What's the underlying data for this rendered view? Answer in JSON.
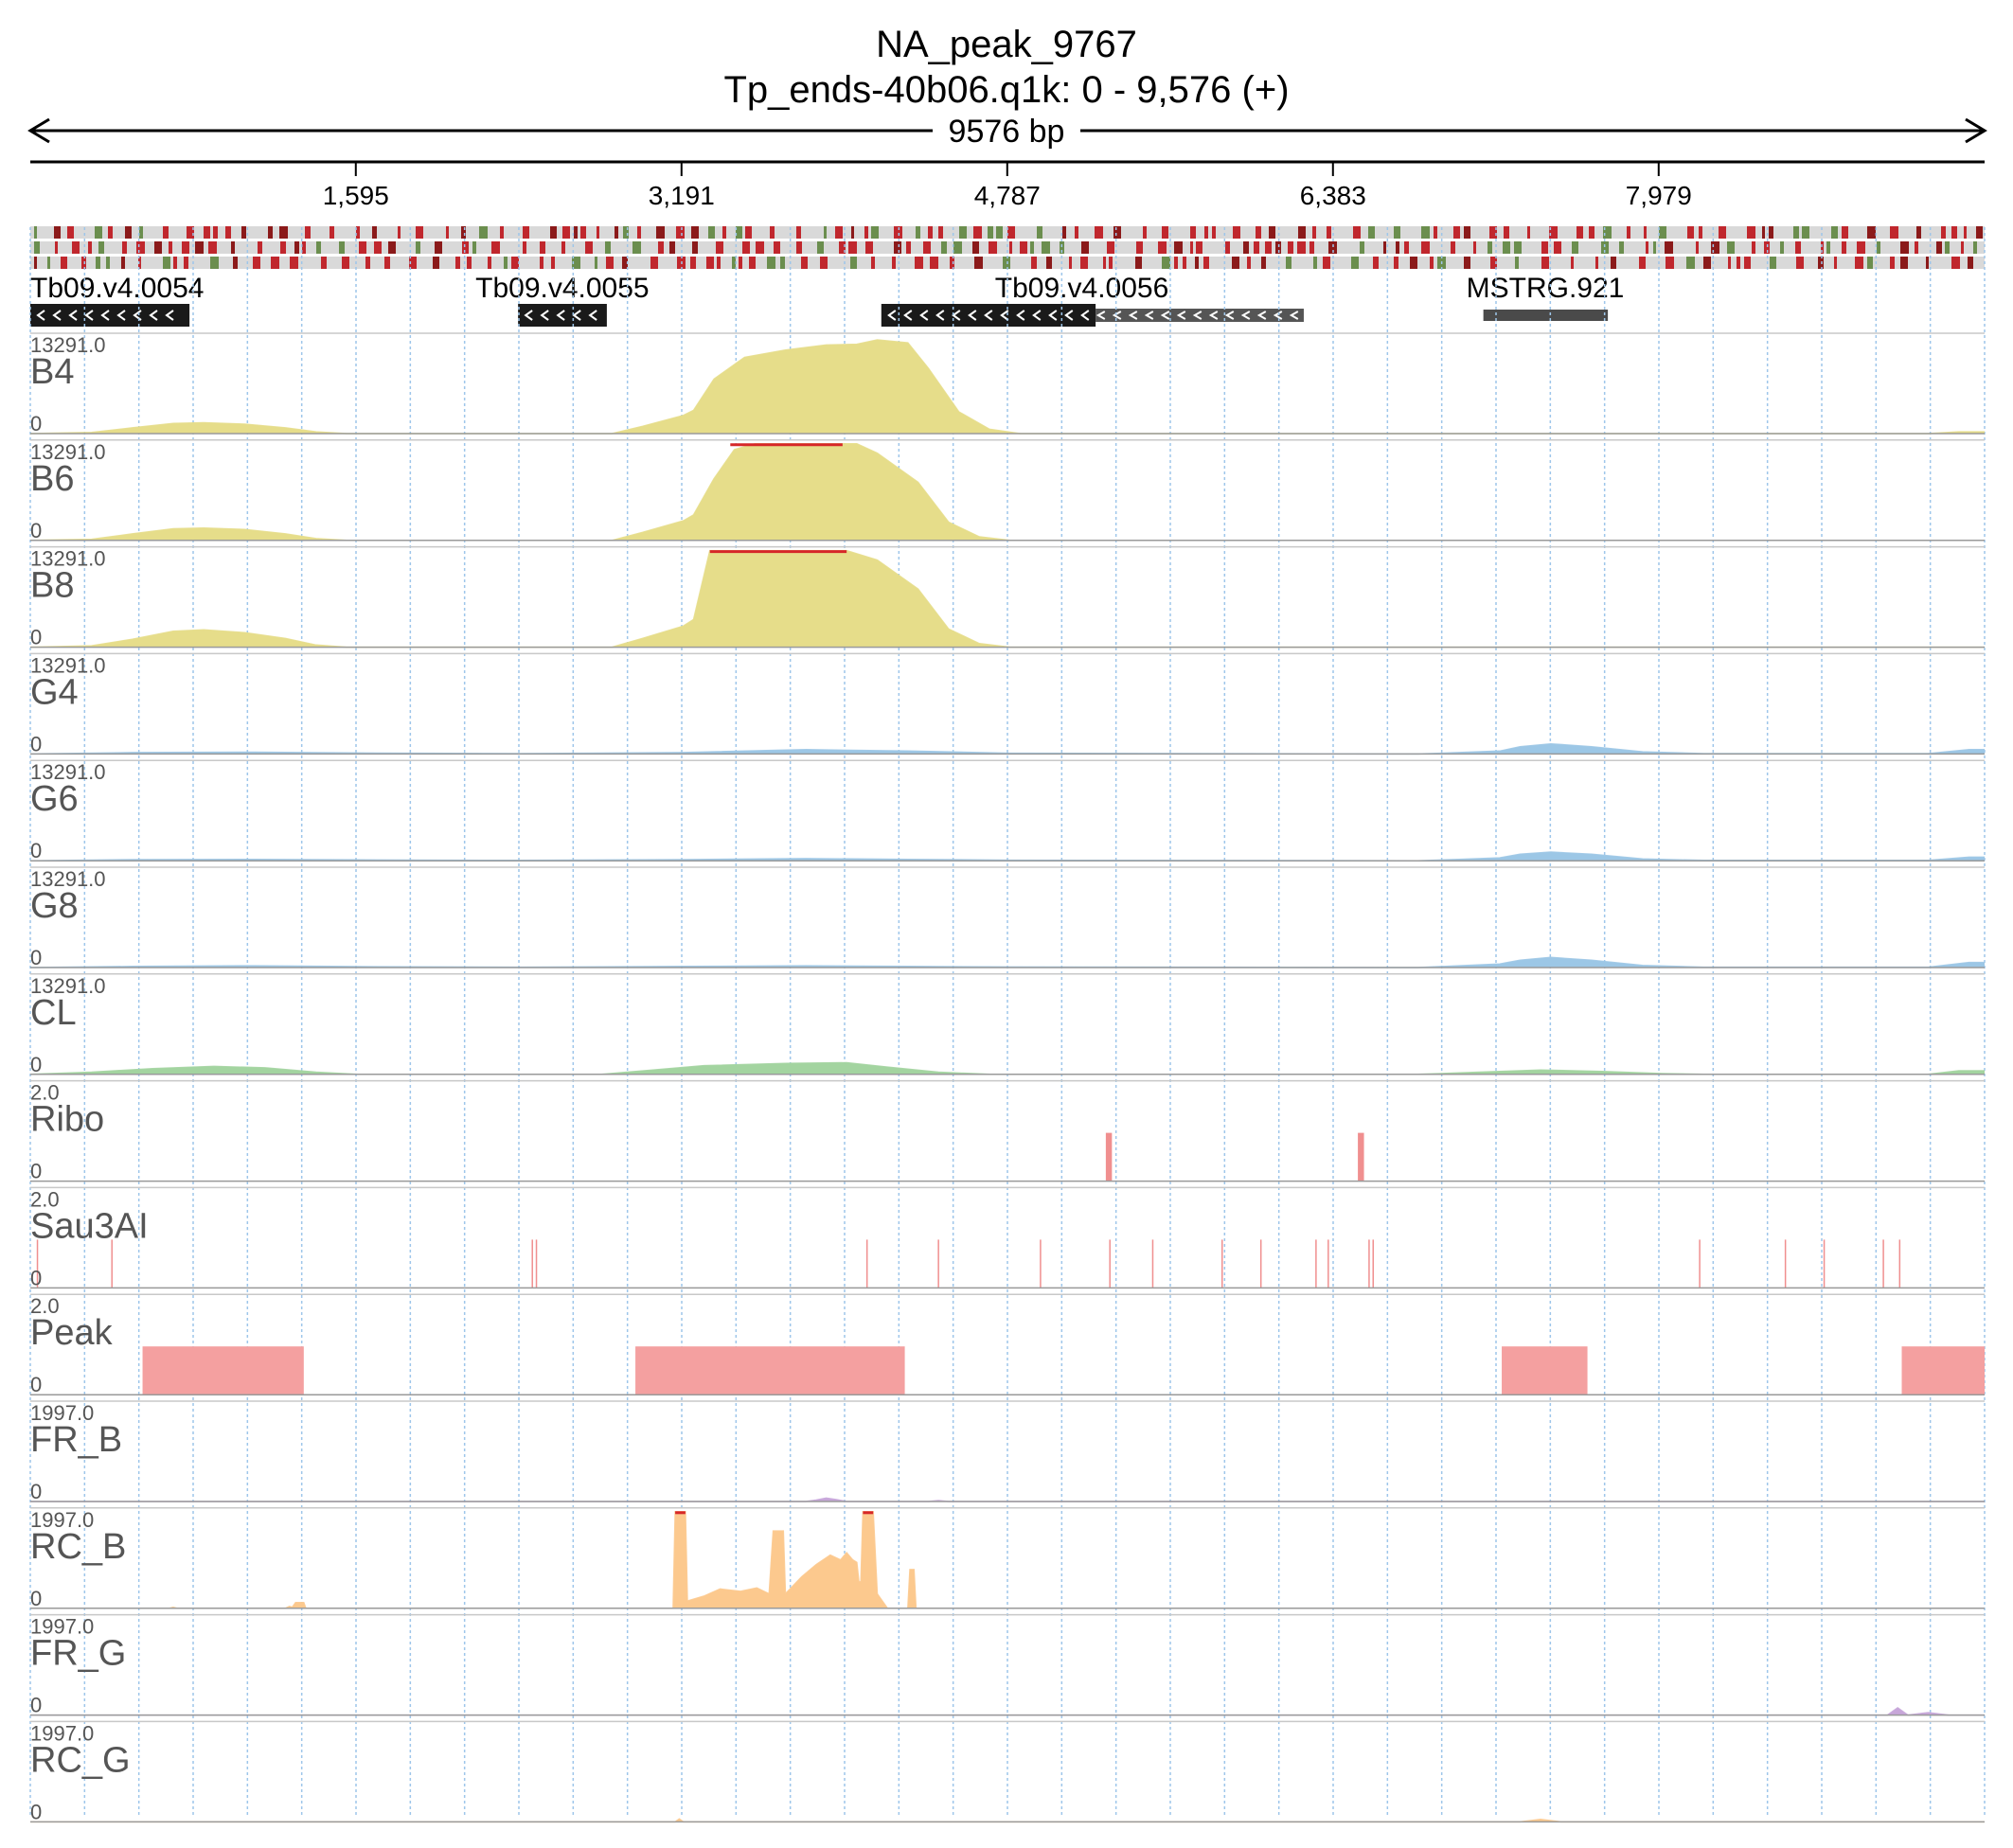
{
  "header": {
    "title": "NA_peak_9767",
    "subtitle": "Tp_ends-40b06.q1k: 0 - 9,576 (+)",
    "span_label": "9576 bp"
  },
  "chart_data": {
    "type": "area",
    "region": {
      "chrom": "Tp_ends-40b06.q1k",
      "start": 0,
      "end": 9576,
      "strand": "+"
    },
    "xlim": [
      0,
      9576
    ],
    "grid": "vertical dotted",
    "ticks": [
      {
        "value": 1595,
        "label": "1,595"
      },
      {
        "value": 3191,
        "label": "3,191"
      },
      {
        "value": 4787,
        "label": "4,787"
      },
      {
        "value": 6383,
        "label": "6,383"
      },
      {
        "value": 7979,
        "label": "7,979"
      }
    ],
    "genes": [
      {
        "name": "Tb09.v4.0054",
        "start": 0,
        "end": 780,
        "strand": "-",
        "style": "solid"
      },
      {
        "name": "Tb09.v4.0055",
        "start": 2390,
        "end": 2825,
        "strand": "-",
        "style": "solid"
      },
      {
        "name": "Tb09.v4.0056",
        "start": 4170,
        "end": 6240,
        "strand": "-",
        "style": "mixed",
        "solid_end": 5220
      },
      {
        "name": "MSTRG.921",
        "start": 7120,
        "end": 7730,
        "strand": "",
        "style": "plain"
      }
    ],
    "tracks": [
      {
        "name": "B4",
        "max_label": "13291.0",
        "min_label": "0",
        "ymax": 13291,
        "color": "#e6dd8a",
        "clip_color": "#d62728",
        "points": [
          [
            0,
            0
          ],
          [
            300,
            150
          ],
          [
            500,
            800
          ],
          [
            700,
            1400
          ],
          [
            850,
            1500
          ],
          [
            1050,
            1300
          ],
          [
            1250,
            800
          ],
          [
            1400,
            250
          ],
          [
            1550,
            0
          ],
          [
            2850,
            0
          ],
          [
            3000,
            1000
          ],
          [
            3200,
            2500
          ],
          [
            3250,
            3200
          ],
          [
            3350,
            7500
          ],
          [
            3500,
            10500
          ],
          [
            3700,
            11500
          ],
          [
            3900,
            12200
          ],
          [
            4050,
            12300
          ],
          [
            4150,
            12900
          ],
          [
            4300,
            12500
          ],
          [
            4400,
            9000
          ],
          [
            4550,
            3000
          ],
          [
            4700,
            600
          ],
          [
            4850,
            0
          ],
          [
            9300,
            0
          ],
          [
            9450,
            250
          ],
          [
            9576,
            250
          ]
        ]
      },
      {
        "name": "B6",
        "max_label": "13291.0",
        "min_label": "0",
        "ymax": 13291,
        "color": "#e6dd8a",
        "clip_color": "#d62728",
        "clip": [
          3430,
          3980
        ],
        "points": [
          [
            0,
            0
          ],
          [
            300,
            150
          ],
          [
            500,
            900
          ],
          [
            700,
            1600
          ],
          [
            850,
            1700
          ],
          [
            1050,
            1500
          ],
          [
            1250,
            900
          ],
          [
            1400,
            250
          ],
          [
            1550,
            0
          ],
          [
            2850,
            0
          ],
          [
            3000,
            1100
          ],
          [
            3200,
            2700
          ],
          [
            3250,
            3500
          ],
          [
            3350,
            8500
          ],
          [
            3450,
            12500
          ],
          [
            3550,
            13291
          ],
          [
            4050,
            13291
          ],
          [
            4150,
            12000
          ],
          [
            4350,
            8000
          ],
          [
            4500,
            2500
          ],
          [
            4650,
            500
          ],
          [
            4800,
            0
          ],
          [
            9576,
            0
          ]
        ]
      },
      {
        "name": "B8",
        "max_label": "13291.0",
        "min_label": "0",
        "ymax": 13291,
        "color": "#e6dd8a",
        "clip_color": "#d62728",
        "clip": [
          3330,
          4000
        ],
        "points": [
          [
            0,
            0
          ],
          [
            300,
            200
          ],
          [
            500,
            1100
          ],
          [
            700,
            2200
          ],
          [
            850,
            2400
          ],
          [
            1050,
            2000
          ],
          [
            1250,
            1200
          ],
          [
            1400,
            300
          ],
          [
            1550,
            0
          ],
          [
            2850,
            0
          ],
          [
            3000,
            1200
          ],
          [
            3200,
            2900
          ],
          [
            3250,
            3800
          ],
          [
            3330,
            13291
          ],
          [
            4000,
            13291
          ],
          [
            4150,
            12000
          ],
          [
            4350,
            8000
          ],
          [
            4500,
            2500
          ],
          [
            4650,
            500
          ],
          [
            4800,
            0
          ],
          [
            9576,
            0
          ]
        ]
      },
      {
        "name": "G4",
        "max_label": "13291.0",
        "min_label": "0",
        "ymax": 13291,
        "color": "#9cc7e6",
        "points": [
          [
            0,
            0
          ],
          [
            500,
            200
          ],
          [
            1100,
            250
          ],
          [
            1700,
            120
          ],
          [
            2400,
            50
          ],
          [
            3200,
            200
          ],
          [
            3800,
            600
          ],
          [
            4300,
            400
          ],
          [
            4800,
            100
          ],
          [
            6800,
            0
          ],
          [
            7000,
            200
          ],
          [
            7200,
            400
          ],
          [
            7300,
            1000
          ],
          [
            7450,
            1400
          ],
          [
            7650,
            1000
          ],
          [
            7900,
            300
          ],
          [
            8200,
            50
          ],
          [
            9300,
            50
          ],
          [
            9500,
            600
          ],
          [
            9576,
            600
          ]
        ]
      },
      {
        "name": "G6",
        "max_label": "13291.0",
        "min_label": "0",
        "ymax": 13291,
        "color": "#9cc7e6",
        "points": [
          [
            0,
            0
          ],
          [
            500,
            150
          ],
          [
            1100,
            200
          ],
          [
            1700,
            100
          ],
          [
            2400,
            50
          ],
          [
            3200,
            150
          ],
          [
            3800,
            300
          ],
          [
            4300,
            200
          ],
          [
            4800,
            80
          ],
          [
            6800,
            0
          ],
          [
            7000,
            200
          ],
          [
            7200,
            400
          ],
          [
            7300,
            900
          ],
          [
            7450,
            1200
          ],
          [
            7650,
            900
          ],
          [
            7900,
            250
          ],
          [
            8200,
            50
          ],
          [
            9300,
            50
          ],
          [
            9500,
            500
          ],
          [
            9576,
            500
          ]
        ]
      },
      {
        "name": "G8",
        "max_label": "13291.0",
        "min_label": "0",
        "ymax": 13291,
        "color": "#9cc7e6",
        "points": [
          [
            0,
            0
          ],
          [
            500,
            150
          ],
          [
            1100,
            250
          ],
          [
            1700,
            120
          ],
          [
            2400,
            50
          ],
          [
            3200,
            150
          ],
          [
            3800,
            250
          ],
          [
            4300,
            150
          ],
          [
            4800,
            80
          ],
          [
            6800,
            0
          ],
          [
            7000,
            250
          ],
          [
            7200,
            500
          ],
          [
            7300,
            1000
          ],
          [
            7450,
            1400
          ],
          [
            7650,
            1000
          ],
          [
            7900,
            300
          ],
          [
            8200,
            50
          ],
          [
            9300,
            50
          ],
          [
            9500,
            700
          ],
          [
            9576,
            700
          ]
        ]
      },
      {
        "name": "CL",
        "max_label": "13291.0",
        "min_label": "0",
        "ymax": 13291,
        "color": "#a3d4a0",
        "points": [
          [
            0,
            0
          ],
          [
            300,
            300
          ],
          [
            600,
            800
          ],
          [
            900,
            1100
          ],
          [
            1150,
            900
          ],
          [
            1400,
            300
          ],
          [
            1600,
            0
          ],
          [
            2800,
            0
          ],
          [
            3050,
            600
          ],
          [
            3300,
            1200
          ],
          [
            3700,
            1500
          ],
          [
            4000,
            1600
          ],
          [
            4200,
            1000
          ],
          [
            4450,
            300
          ],
          [
            4700,
            0
          ],
          [
            6800,
            0
          ],
          [
            7100,
            300
          ],
          [
            7400,
            600
          ],
          [
            7700,
            400
          ],
          [
            8000,
            100
          ],
          [
            8200,
            0
          ],
          [
            9300,
            0
          ],
          [
            9450,
            500
          ],
          [
            9576,
            500
          ]
        ]
      },
      {
        "name": "Ribo",
        "max_label": "2.0",
        "min_label": "0",
        "ymax": 2,
        "color": "#f08f8f",
        "bars": [
          [
            5270,
            5300,
            1
          ],
          [
            6505,
            6535,
            1
          ]
        ]
      },
      {
        "name": "Sau3AI",
        "max_label": "2.0",
        "min_label": "0",
        "ymax": 2,
        "color": "#f08f8f",
        "lines": [
          35,
          400,
          2460,
          2480,
          4100,
          4450,
          4950,
          5290,
          5500,
          5840,
          6030,
          6300,
          6360,
          6560,
          6580,
          8180,
          8600,
          8790,
          9080,
          9160
        ]
      },
      {
        "name": "Peak",
        "max_label": "2.0",
        "min_label": "0",
        "ymax": 2,
        "color": "#f4a0a0",
        "bars": [
          [
            550,
            1340,
            1
          ],
          [
            2965,
            4285,
            1
          ],
          [
            7210,
            7630,
            1
          ],
          [
            9170,
            9576,
            1
          ]
        ]
      },
      {
        "name": "FR_B",
        "max_label": "1997.0",
        "min_label": "0",
        "ymax": 1997,
        "color": "#c7a6d9",
        "points": [
          [
            0,
            0
          ],
          [
            3800,
            0
          ],
          [
            3850,
            30
          ],
          [
            3900,
            70
          ],
          [
            3950,
            40
          ],
          [
            4000,
            0
          ],
          [
            4400,
            0
          ],
          [
            4450,
            20
          ],
          [
            4500,
            0
          ],
          [
            9576,
            0
          ]
        ]
      },
      {
        "name": "RC_B",
        "max_label": "1997.0",
        "min_label": "0",
        "ymax": 1997,
        "color": "#fcc98e",
        "clip_color": "#d62728",
        "points": [
          [
            0,
            0
          ],
          [
            680,
            0
          ],
          [
            700,
            20
          ],
          [
            720,
            0
          ],
          [
            1250,
            0
          ],
          [
            1270,
            40
          ],
          [
            1300,
            0
          ],
          [
            1280,
            0
          ],
          [
            1300,
            120
          ],
          [
            1340,
            120
          ],
          [
            1350,
            0
          ],
          [
            3150,
            0
          ],
          [
            3160,
            1997
          ],
          [
            3210,
            1997
          ],
          [
            3220,
            150
          ],
          [
            3300,
            250
          ],
          [
            3380,
            400
          ],
          [
            3480,
            350
          ],
          [
            3560,
            420
          ],
          [
            3620,
            300
          ],
          [
            3640,
            1600
          ],
          [
            3690,
            1600
          ],
          [
            3700,
            300
          ],
          [
            3780,
            650
          ],
          [
            3850,
            900
          ],
          [
            3920,
            1100
          ],
          [
            3970,
            1000
          ],
          [
            4000,
            1150
          ],
          [
            4030,
            1000
          ],
          [
            4050,
            950
          ],
          [
            4060,
            550
          ],
          [
            4070,
            550
          ],
          [
            4080,
            1997
          ],
          [
            4130,
            1997
          ],
          [
            4150,
            300
          ],
          [
            4200,
            0
          ],
          [
            4300,
            0
          ],
          [
            4310,
            800
          ],
          [
            4330,
            800
          ],
          [
            4340,
            0
          ],
          [
            9576,
            0
          ]
        ]
      },
      {
        "name": "FR_G",
        "max_label": "1997.0",
        "min_label": "0",
        "ymax": 1997,
        "color": "#c7a6d9",
        "points": [
          [
            0,
            0
          ],
          [
            9100,
            0
          ],
          [
            9150,
            150
          ],
          [
            9200,
            0
          ],
          [
            9300,
            50
          ],
          [
            9400,
            0
          ],
          [
            9576,
            0
          ]
        ]
      },
      {
        "name": "RC_G",
        "max_label": "1997.0",
        "min_label": "0",
        "ymax": 1997,
        "color": "#fcc98e",
        "points": [
          [
            0,
            0
          ],
          [
            3160,
            0
          ],
          [
            3180,
            60
          ],
          [
            3200,
            0
          ],
          [
            7300,
            0
          ],
          [
            7400,
            50
          ],
          [
            7500,
            0
          ],
          [
            9576,
            0
          ]
        ]
      }
    ],
    "motif_rows": 3,
    "motif_colors": [
      "#c0272d",
      "#8b1a1a",
      "#6b8e4e",
      "#d9d9d9"
    ]
  }
}
